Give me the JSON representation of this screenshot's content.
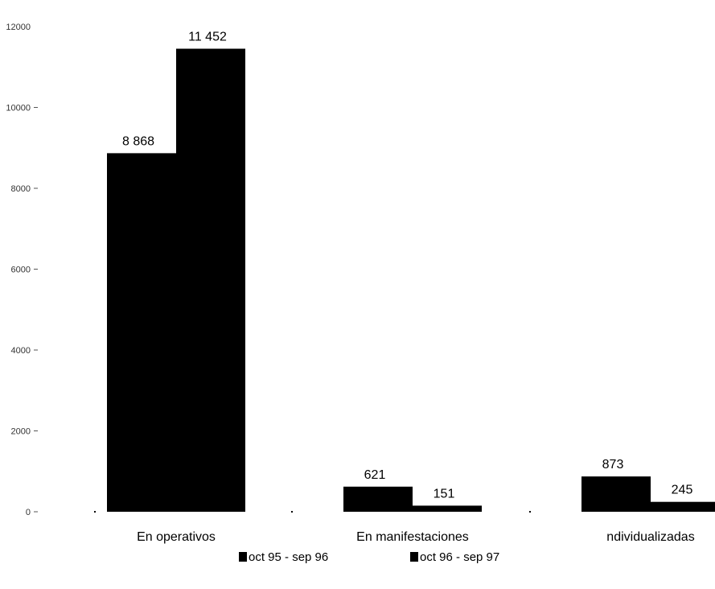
{
  "chart_data": {
    "type": "bar",
    "categories": [
      "En operativos",
      "En manifestaciones",
      "ndividualizadas"
    ],
    "series": [
      {
        "name": "oct 95 - sep 96",
        "values": [
          8868,
          621,
          873
        ],
        "labels": [
          "8 868",
          "621",
          "873"
        ],
        "color": "#000000"
      },
      {
        "name": "oct 96 - sep 97",
        "values": [
          11452,
          151,
          245
        ],
        "labels": [
          "11 452",
          "151",
          "245"
        ],
        "color": "#000000"
      }
    ],
    "yticks": [
      0,
      2000,
      4000,
      6000,
      8000,
      10000,
      12000
    ],
    "ytick_labels": [
      "0",
      "2000",
      "4000",
      "6000",
      "8000",
      "10000",
      "12000"
    ],
    "ylim": [
      0,
      12000
    ],
    "title": "",
    "xlabel": "",
    "ylabel": "",
    "grid": false,
    "legend_position": "bottom"
  }
}
